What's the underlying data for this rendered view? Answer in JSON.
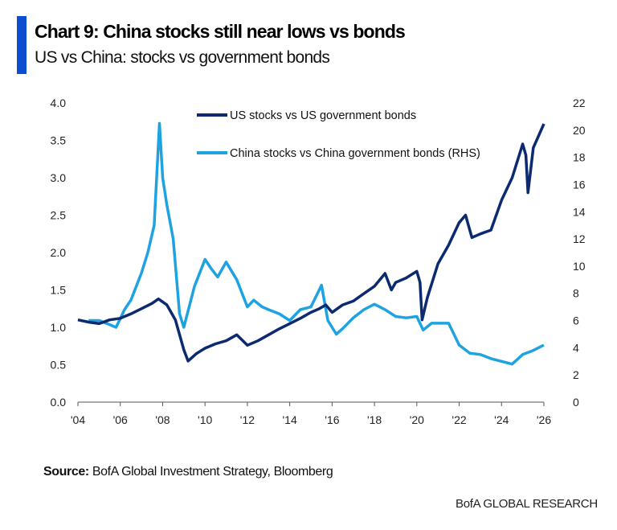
{
  "header": {
    "title": "Chart 9: China stocks still near lows vs bonds",
    "subtitle": "US vs China: stocks vs government bonds"
  },
  "footer": {
    "source_label": "Source:",
    "source_text": " BofA Global Investment Strategy, Bloomberg",
    "brand": "BofA GLOBAL RESEARCH"
  },
  "chart_data": {
    "type": "line",
    "title": "Chart 9: China stocks still near lows vs bonds",
    "subtitle": "US vs China: stocks vs government bonds",
    "xlabel": "",
    "ylabel": "",
    "y2label": "",
    "xlim": [
      2004,
      2026
    ],
    "ylim": [
      0,
      4
    ],
    "y2lim": [
      0,
      22
    ],
    "x_ticks": [
      "'04",
      "'06",
      "'08",
      "'10",
      "'12",
      "'14",
      "'16",
      "'18",
      "'20",
      "'22",
      "'24",
      "'26"
    ],
    "y_ticks": [
      "0.0",
      "0.5",
      "1.0",
      "1.5",
      "2.0",
      "2.5",
      "3.0",
      "3.5",
      "4.0"
    ],
    "y2_ticks": [
      "0",
      "2",
      "4",
      "6",
      "8",
      "10",
      "12",
      "14",
      "16",
      "18",
      "20",
      "22"
    ],
    "legend_position": "top-center",
    "grid": false,
    "series": [
      {
        "name": "US stocks vs US government bonds",
        "axis": "left",
        "color": "#0b2a6f",
        "x": [
          2004.0,
          2004.5,
          2005.0,
          2005.5,
          2006.0,
          2006.5,
          2007.0,
          2007.5,
          2007.8,
          2008.2,
          2008.6,
          2009.0,
          2009.2,
          2009.6,
          2010.0,
          2010.5,
          2011.0,
          2011.5,
          2012.0,
          2012.5,
          2013.0,
          2013.5,
          2014.0,
          2014.5,
          2015.0,
          2015.4,
          2015.7,
          2016.0,
          2016.5,
          2017.0,
          2017.5,
          2018.0,
          2018.5,
          2018.8,
          2019.0,
          2019.5,
          2020.0,
          2020.15,
          2020.25,
          2020.5,
          2021.0,
          2021.5,
          2022.0,
          2022.3,
          2022.6,
          2023.0,
          2023.5,
          2024.0,
          2024.5,
          2025.0,
          2025.15,
          2025.25,
          2025.5,
          2026.0
        ],
        "values": [
          1.1,
          1.07,
          1.05,
          1.1,
          1.12,
          1.18,
          1.25,
          1.32,
          1.38,
          1.3,
          1.1,
          0.7,
          0.55,
          0.65,
          0.72,
          0.78,
          0.82,
          0.9,
          0.76,
          0.82,
          0.9,
          0.98,
          1.05,
          1.12,
          1.2,
          1.25,
          1.3,
          1.2,
          1.3,
          1.35,
          1.45,
          1.55,
          1.72,
          1.5,
          1.6,
          1.66,
          1.75,
          1.6,
          1.1,
          1.4,
          1.85,
          2.1,
          2.4,
          2.5,
          2.2,
          2.25,
          2.3,
          2.7,
          3.0,
          3.45,
          3.3,
          2.8,
          3.4,
          3.72
        ]
      },
      {
        "name": "China stocks vs China government bonds (RHS)",
        "axis": "right",
        "color": "#1ea3e0",
        "x": [
          2004.5,
          2005.0,
          2005.5,
          2005.8,
          2006.2,
          2006.5,
          2007.0,
          2007.3,
          2007.6,
          2007.85,
          2008.0,
          2008.2,
          2008.5,
          2008.8,
          2009.0,
          2009.5,
          2010.0,
          2010.3,
          2010.6,
          2011.0,
          2011.5,
          2012.0,
          2012.3,
          2012.7,
          2013.0,
          2013.5,
          2014.0,
          2014.5,
          2015.0,
          2015.5,
          2015.8,
          2016.2,
          2016.5,
          2017.0,
          2017.5,
          2018.0,
          2018.5,
          2019.0,
          2019.5,
          2020.0,
          2020.3,
          2020.7,
          2021.0,
          2021.5,
          2022.0,
          2022.5,
          2023.0,
          2023.5,
          2024.0,
          2024.5,
          2025.0,
          2025.5,
          2026.0
        ],
        "values": [
          6.0,
          6.0,
          5.7,
          5.5,
          6.8,
          7.5,
          9.5,
          11.0,
          13.0,
          20.5,
          16.5,
          14.5,
          12.0,
          6.5,
          5.5,
          8.5,
          10.5,
          9.8,
          9.2,
          10.3,
          9.0,
          7.0,
          7.5,
          7.0,
          6.8,
          6.5,
          6.0,
          6.8,
          7.0,
          8.6,
          6.0,
          5.0,
          5.4,
          6.2,
          6.8,
          7.2,
          6.8,
          6.3,
          6.2,
          6.3,
          5.3,
          5.8,
          5.8,
          5.8,
          4.2,
          3.6,
          3.5,
          3.2,
          3.0,
          2.8,
          3.5,
          3.8,
          4.2
        ]
      }
    ]
  }
}
